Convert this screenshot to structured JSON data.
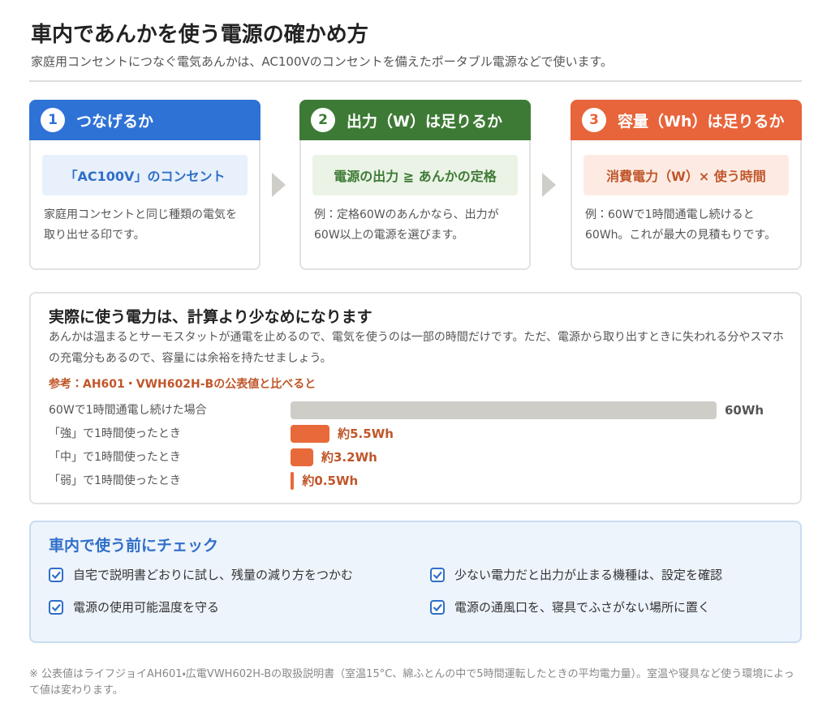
{
  "header": {
    "title": "車内であんかを使う電源の確かめ方",
    "subtitle": "家庭用コンセントにつなぐ電気あんかは、AC100Vのコンセントを備えたポータブル電源などで使います。"
  },
  "steps": [
    {
      "number": 1,
      "title": "つなげるか",
      "highlight": "「AC100V」のコンセント",
      "text": "家庭用コンセントと同じ種類の電気を取り出せる印です。"
    },
    {
      "number": 2,
      "title": "出力（W）は足りるか",
      "highlight": "電源の出力 ≧ あんかの定格",
      "text": "例：定格60Wのあんかなら、出力が60W以上の電源を選びます。"
    },
    {
      "number": 3,
      "title": "容量（Wh）は足りるか",
      "highlight": "消費電力（W）× 使う時間",
      "text": "例：60Wで1時間通電し続けると60Wh。これが最大の見積もりです。"
    }
  ],
  "note": {
    "title": "実際に使う電力は、計算より少なめになります",
    "text": "あんかは温まるとサーモスタットが通電を止めるので、電気を使うのは一部の時間だけです。ただ、電源から取り出すときに失われる分やスマホの充電分もあるので、容量には余裕を持たせましょう。",
    "reference": "参考：AH601・VWH602H-Bの公表値と比べると"
  },
  "chart_data": {
    "type": "bar",
    "orientation": "horizontal",
    "categories": [
      "60Wで1時間通電し続けた場合",
      "「強」で1時間使ったとき",
      "「中」で1時間使ったとき",
      "「弱」で1時間使ったとき"
    ],
    "values": [
      60,
      5.5,
      3.2,
      0.5
    ],
    "value_labels": [
      "60Wh",
      "約5.5Wh",
      "約3.2Wh",
      "約0.5Wh"
    ],
    "colors": [
      "#cfcdc8",
      "#e8693a",
      "#e8693a",
      "#e8693a"
    ],
    "xlim": [
      0,
      60
    ]
  },
  "checklist": {
    "title": "車内で使う前にチェック",
    "items": [
      "自宅で説明書どおりに試し、残量の減り方をつかむ",
      "少ない電力だと出力が止まる機種は、設定を確認",
      "電源の使用可能温度を守る",
      "電源の通風口を、寝具でふさがない場所に置く"
    ]
  },
  "footnote": "※ 公表値はライフジョイAH601・広電VWH602H-Bの取扱説明書（室温15°C、綿ふとんの中で5時間運転したときの平均電力量）。室温や寝具など使う環境によって値は変わります。"
}
